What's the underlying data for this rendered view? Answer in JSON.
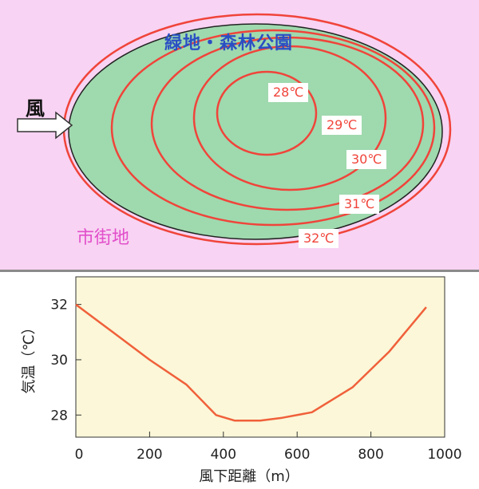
{
  "map": {
    "park_title": "緑地・森林公園",
    "city_label": "市街地",
    "wind_label": "風",
    "isotherms": [
      "28℃",
      "29℃",
      "30℃",
      "31℃",
      "32℃"
    ],
    "colors": {
      "background": "#f8d3f3",
      "park": "#9fd9ae",
      "isotherm": "#f0443a",
      "title": "#2a4fc4",
      "city": "#e24fcb"
    }
  },
  "chart_data": {
    "type": "line",
    "x": [
      0,
      100,
      200,
      300,
      380,
      430,
      500,
      560,
      640,
      750,
      850,
      950
    ],
    "series": [
      {
        "values": [
          32.0,
          31.0,
          30.0,
          29.1,
          28.0,
          27.8,
          27.8,
          27.9,
          28.1,
          29.0,
          30.3,
          31.9
        ]
      }
    ],
    "xlabel": "風下距離（m）",
    "ylabel": "気温（℃）",
    "xlim": [
      0,
      1000
    ],
    "ylim": [
      27.2,
      33
    ],
    "xticks": [
      0,
      200,
      400,
      600,
      800,
      1000
    ],
    "yticks": [
      28,
      30,
      32
    ],
    "xtick_labels": [
      "0",
      "200",
      "400",
      "600",
      "800",
      "1000"
    ],
    "ytick_labels": [
      "28",
      "30",
      "32"
    ],
    "grid": false,
    "colors": {
      "line": "#f0603a",
      "plot_bg": "#fbf7d8",
      "frame": "#333333"
    }
  }
}
